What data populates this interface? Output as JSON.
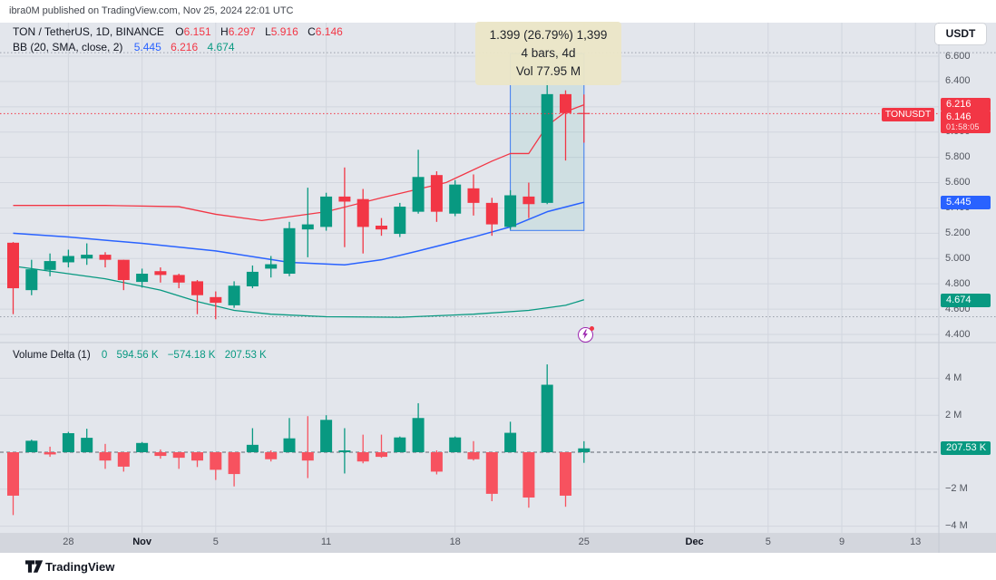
{
  "header": {
    "attribution": "ibra0M published on TradingView.com, Nov 25, 2024 22:01 UTC"
  },
  "legend": {
    "symbol": "TON / TetherUS, 1D, BINANCE",
    "ohlc": [
      {
        "label": "O",
        "value": "6.151"
      },
      {
        "label": "H",
        "value": "6.297"
      },
      {
        "label": "L",
        "value": "5.916"
      },
      {
        "label": "C",
        "value": "6.146"
      }
    ],
    "indicator": "BB (20, SMA, close, 2)",
    "indicator_values": [
      {
        "value": "5.445",
        "color": "#2962ff"
      },
      {
        "value": "6.216",
        "color": "#f23645"
      },
      {
        "value": "4.674",
        "color": "#089981"
      }
    ]
  },
  "measure_tooltip": {
    "price_change": "1.399 (26.79%) 1,399",
    "bars": "4 bars, 4d",
    "volume": "Vol 77.95 M"
  },
  "volume_pane": {
    "legend_title": "Volume Delta (1)",
    "legend_values": [
      "0",
      "594.56 K",
      "−574.18 K",
      "207.53 K"
    ],
    "badge": "207.53 K"
  },
  "price_scale": {
    "currency_button": "USDT",
    "symbol_tag": "TONUSDT",
    "last_price": "6.146",
    "countdown": "01:58:05",
    "upper_band_badge": "6.216",
    "basis_badge": "5.445",
    "lower_band_badge": "4.674",
    "ticks": [
      "6.600",
      "6.400",
      "6.200",
      "6.000",
      "5.800",
      "5.600",
      "5.400",
      "5.200",
      "5.000",
      "4.800",
      "4.600",
      "4.400"
    ]
  },
  "volume_scale_ticks": [
    {
      "label": "4 M",
      "v": 4
    },
    {
      "label": "2 M",
      "v": 2
    },
    {
      "label": "−2 M",
      "v": -2
    },
    {
      "label": "−4 M",
      "v": -4
    }
  ],
  "footer": {
    "brand": "TradingView"
  },
  "colors": {
    "up": "#089981",
    "down": "#f23645",
    "vol_up": "#089981",
    "vol_down": "#f7525f",
    "bb_upper": "#f23645",
    "bb_basis": "#2962ff",
    "bb_lower": "#089981",
    "grid": "#d2d6de",
    "axis_strip": "#d3d6dd",
    "dotted_range": "#9aa0aa",
    "zero_line": "#5f6570",
    "box_border": "#3b7bf0",
    "box_fill": "rgba(8,153,129,0.09)",
    "current_price_line": "#f23645",
    "separator": "#c6cad3"
  },
  "chart_data": {
    "type": "candlestick",
    "symbol": "TON/TetherUS",
    "exchange": "BINANCE",
    "interval": "1D",
    "title": "TON / TetherUS, 1D, BINANCE with Bollinger Bands and Volume Delta",
    "dates_start": "2024-10-25",
    "dates_end": "2024-11-25",
    "price_axis": {
      "min": 4.4,
      "max": 6.6,
      "step": 0.2
    },
    "volume_axis_millions": {
      "min": -4,
      "max": 4
    },
    "x_labels": [
      {
        "text": "28",
        "index": 3,
        "bold": false
      },
      {
        "text": "Nov",
        "index": 7,
        "bold": true
      },
      {
        "text": "5",
        "index": 11,
        "bold": false
      },
      {
        "text": "11",
        "index": 17,
        "bold": false
      },
      {
        "text": "18",
        "index": 24,
        "bold": false
      },
      {
        "text": "25",
        "index": 31,
        "bold": false
      },
      {
        "text": "Dec",
        "index": 37,
        "bold": true
      },
      {
        "text": "5",
        "index": 41,
        "bold": false
      },
      {
        "text": "9",
        "index": 45,
        "bold": false
      },
      {
        "text": "13",
        "index": 49,
        "bold": false
      }
    ],
    "candles": [
      [
        5.125,
        5.13,
        4.56,
        4.765
      ],
      [
        4.75,
        4.99,
        4.71,
        4.915
      ],
      [
        4.91,
        5.04,
        4.86,
        4.98
      ],
      [
        4.97,
        5.07,
        4.93,
        5.02
      ],
      [
        5.0,
        5.12,
        4.95,
        5.03
      ],
      [
        5.03,
        5.05,
        4.93,
        4.99
      ],
      [
        4.99,
        4.99,
        4.75,
        4.83
      ],
      [
        4.815,
        4.92,
        4.77,
        4.88
      ],
      [
        4.9,
        4.93,
        4.81,
        4.87
      ],
      [
        4.87,
        4.88,
        4.765,
        4.81
      ],
      [
        4.82,
        4.83,
        4.56,
        4.71
      ],
      [
        4.695,
        4.74,
        4.52,
        4.65
      ],
      [
        4.63,
        4.82,
        4.61,
        4.785
      ],
      [
        4.78,
        4.945,
        4.765,
        4.895
      ],
      [
        4.92,
        5.02,
        4.85,
        4.955
      ],
      [
        4.88,
        5.29,
        4.86,
        5.24
      ],
      [
        5.23,
        5.56,
        5.01,
        5.27
      ],
      [
        5.25,
        5.52,
        5.22,
        5.49
      ],
      [
        5.49,
        5.72,
        5.09,
        5.45
      ],
      [
        5.47,
        5.55,
        5.04,
        5.25
      ],
      [
        5.26,
        5.32,
        5.18,
        5.23
      ],
      [
        5.195,
        5.44,
        5.17,
        5.41
      ],
      [
        5.37,
        5.86,
        5.355,
        5.645
      ],
      [
        5.66,
        5.69,
        5.29,
        5.37
      ],
      [
        5.355,
        5.62,
        5.335,
        5.585
      ],
      [
        5.555,
        5.665,
        5.34,
        5.44
      ],
      [
        5.44,
        5.48,
        5.18,
        5.27
      ],
      [
        5.25,
        5.54,
        5.23,
        5.5
      ],
      [
        5.49,
        5.6,
        5.32,
        5.43
      ],
      [
        5.44,
        6.41,
        5.43,
        6.3
      ],
      [
        6.3,
        6.33,
        5.775,
        6.15
      ],
      [
        6.151,
        6.297,
        5.916,
        6.146
      ]
    ],
    "volume_delta_millions": [
      [
        -2.35,
        0,
        -3.4
      ],
      [
        0.62,
        0.68,
        0
      ],
      [
        -0.12,
        0.3,
        -0.25
      ],
      [
        1.03,
        1.1,
        0
      ],
      [
        0.78,
        1.27,
        0
      ],
      [
        -0.45,
        0.45,
        -0.9
      ],
      [
        -0.78,
        0,
        -1.05
      ],
      [
        0.5,
        0.55,
        0
      ],
      [
        -0.2,
        0.15,
        -0.35
      ],
      [
        -0.3,
        0,
        -0.9
      ],
      [
        -0.45,
        0,
        -0.8
      ],
      [
        -0.95,
        0,
        -1.5
      ],
      [
        -1.18,
        0,
        -1.85
      ],
      [
        0.4,
        1.3,
        0
      ],
      [
        -0.38,
        0.1,
        -0.5
      ],
      [
        0.75,
        1.85,
        0
      ],
      [
        -0.45,
        1.95,
        -1.4
      ],
      [
        1.75,
        2.0,
        0
      ],
      [
        0.1,
        1.3,
        -1.15
      ],
      [
        -0.5,
        0.95,
        -0.6
      ],
      [
        -0.25,
        0.95,
        -0.3
      ],
      [
        0.8,
        0.85,
        0
      ],
      [
        1.85,
        2.65,
        0
      ],
      [
        -1.05,
        0.1,
        -1.2
      ],
      [
        0.8,
        0.85,
        0
      ],
      [
        -0.38,
        0.6,
        -0.45
      ],
      [
        -2.25,
        0,
        -2.65
      ],
      [
        1.05,
        1.65,
        0
      ],
      [
        -2.45,
        0,
        -3.0
      ],
      [
        3.65,
        4.75,
        0
      ],
      [
        -2.35,
        0,
        -2.95
      ],
      [
        0.208,
        0.595,
        -0.574
      ]
    ],
    "bb_upper": [
      [
        0,
        5.42
      ],
      [
        5,
        5.42
      ],
      [
        9,
        5.41
      ],
      [
        11,
        5.35
      ],
      [
        13.5,
        5.3
      ],
      [
        17,
        5.37
      ],
      [
        20,
        5.48
      ],
      [
        23.5,
        5.6
      ],
      [
        26,
        5.77
      ],
      [
        27,
        5.83
      ],
      [
        28,
        5.83
      ],
      [
        29,
        6.05
      ],
      [
        30,
        6.16
      ],
      [
        31,
        6.216
      ]
    ],
    "bb_basis": [
      [
        0,
        5.2
      ],
      [
        3,
        5.17
      ],
      [
        7,
        5.12
      ],
      [
        11,
        5.06
      ],
      [
        15,
        4.97
      ],
      [
        18,
        4.95
      ],
      [
        20,
        4.99
      ],
      [
        22,
        5.06
      ],
      [
        25,
        5.17
      ],
      [
        27,
        5.25
      ],
      [
        29,
        5.37
      ],
      [
        31,
        5.445
      ]
    ],
    "bb_lower": [
      [
        0,
        4.94
      ],
      [
        2,
        4.9
      ],
      [
        5,
        4.84
      ],
      [
        8,
        4.75
      ],
      [
        10,
        4.66
      ],
      [
        12,
        4.59
      ],
      [
        14,
        4.56
      ],
      [
        17,
        4.54
      ],
      [
        21,
        4.535
      ],
      [
        25,
        4.56
      ],
      [
        28,
        4.59
      ],
      [
        30,
        4.63
      ],
      [
        31,
        4.674
      ]
    ],
    "measure_box": {
      "start_index": 27,
      "end_index": 31,
      "price_from": 5.222,
      "price_to": 6.621,
      "bars": 4,
      "change": 1.399,
      "change_pct": 26.79,
      "volume": "77.95 M"
    },
    "current_price": 6.146,
    "range_dotted_high": 6.628,
    "range_dotted_low": 4.54
  }
}
